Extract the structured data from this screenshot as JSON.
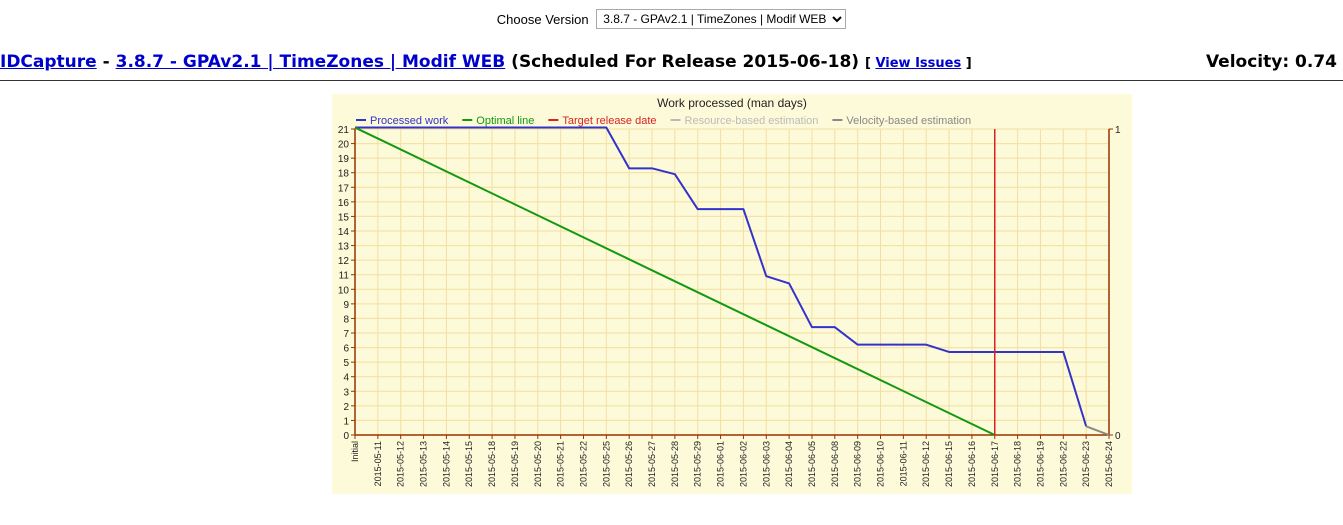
{
  "version_selector": {
    "label": "Choose Version",
    "selected": "3.8.7 - GPAv2.1 | TimeZones | Modif WEB"
  },
  "header": {
    "project_link": "IDCapture",
    "separator": "-",
    "version_link": "3.8.7 - GPAv2.1 | TimeZones | Modif WEB",
    "schedule_text": "(Scheduled For Release 2015-06-18)",
    "issues_open": "[",
    "issues_link": "View Issues",
    "issues_close": "]",
    "velocity": "Velocity: 0.74"
  },
  "colors": {
    "background": "#fcfad8",
    "grid": "#f4dfa0",
    "axis": "#993300",
    "processed": "#3333cc",
    "optimal": "#119911",
    "target": "#dd2222",
    "resource": "#bbbbbb",
    "velocity": "#888888"
  },
  "chart_data": {
    "type": "line",
    "title": "Work processed (man days)",
    "xlabel": "",
    "ylabel": "",
    "grid": true,
    "legend_position": "top",
    "categories": [
      "Initial",
      "2015-05-11",
      "2015-05-12",
      "2015-05-13",
      "2015-05-14",
      "2015-05-15",
      "2015-05-18",
      "2015-05-19",
      "2015-05-20",
      "2015-05-21",
      "2015-05-22",
      "2015-05-25",
      "2015-05-26",
      "2015-05-27",
      "2015-05-28",
      "2015-05-29",
      "2015-06-01",
      "2015-06-02",
      "2015-06-03",
      "2015-06-04",
      "2015-06-05",
      "2015-06-08",
      "2015-06-09",
      "2015-06-10",
      "2015-06-11",
      "2015-06-12",
      "2015-06-15",
      "2015-06-16",
      "2015-06-17",
      "2015-06-18",
      "2015-06-19",
      "2015-06-22",
      "2015-06-23",
      "2015-06-24"
    ],
    "ylim": [
      0,
      21
    ],
    "y_ticks": [
      0,
      1,
      2,
      3,
      4,
      5,
      6,
      7,
      8,
      9,
      10,
      11,
      12,
      13,
      14,
      15,
      16,
      17,
      18,
      19,
      20,
      21
    ],
    "y2_ticks": [
      "0",
      "1"
    ],
    "series": [
      {
        "name": "Processed work",
        "color": "#3333cc",
        "values": [
          21.1,
          21.1,
          21.1,
          21.1,
          21.1,
          21.1,
          21.1,
          21.1,
          21.1,
          21.1,
          21.1,
          21.1,
          18.3,
          18.3,
          17.9,
          15.5,
          15.5,
          15.5,
          10.9,
          10.4,
          7.4,
          7.4,
          6.2,
          6.2,
          6.2,
          6.2,
          5.7,
          5.7,
          5.7,
          5.7,
          5.7,
          5.7,
          0.6,
          null
        ]
      },
      {
        "name": "Optimal line",
        "color": "#119911",
        "points": [
          {
            "x": "Initial",
            "y": 21.1
          },
          {
            "x": "2015-06-17",
            "y": 0
          }
        ]
      },
      {
        "name": "Target release date",
        "color": "#dd2222",
        "x": "2015-06-17"
      },
      {
        "name": "Resource-based estimation",
        "color": "#bbbbbb",
        "points": []
      },
      {
        "name": "Velocity-based estimation",
        "color": "#888888",
        "points": [
          {
            "x": "2015-06-23",
            "y": 0.6
          },
          {
            "x": "2015-06-24",
            "y": 0
          }
        ]
      }
    ]
  }
}
